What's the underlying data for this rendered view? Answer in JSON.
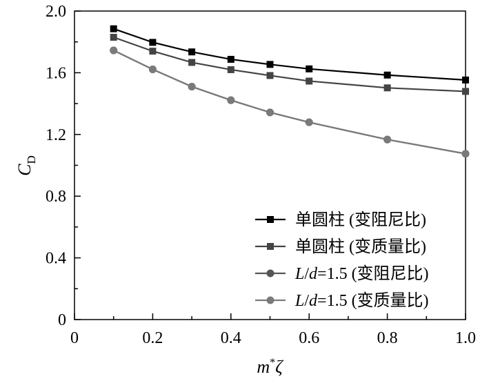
{
  "chart_data": {
    "type": "line",
    "xlabel": "m*ζ",
    "ylabel": "CD",
    "xlim": [
      0,
      1.0
    ],
    "ylim": [
      0,
      2.0
    ],
    "x_ticks": [
      "0",
      "0.2",
      "0.4",
      "0.6",
      "0.8",
      "1.0"
    ],
    "y_ticks": [
      "0",
      "0.4",
      "0.8",
      "1.2",
      "1.6",
      "2.0"
    ],
    "grid": false,
    "legend_position": "bottom-right",
    "x": [
      0.1,
      0.2,
      0.3,
      0.4,
      0.5,
      0.6,
      0.8,
      1.0
    ],
    "series": [
      {
        "name": "单圆柱 (变阻尼比)",
        "marker": "square",
        "color": "#000000",
        "values": [
          1.885,
          1.797,
          1.735,
          1.687,
          1.654,
          1.625,
          1.585,
          1.553
        ]
      },
      {
        "name": "单圆柱 (变质量比)",
        "marker": "square",
        "color": "#444444",
        "values": [
          1.83,
          1.74,
          1.667,
          1.62,
          1.582,
          1.546,
          1.502,
          1.479
        ]
      },
      {
        "name": "L/d=1.5 (变阻尼比)",
        "marker": "circle",
        "color": "#555555",
        "values": [
          1.745,
          1.622,
          1.51,
          1.422,
          1.343,
          1.279,
          1.167,
          1.075
        ]
      },
      {
        "name": "L/d=1.5 (变质量比)",
        "marker": "circle",
        "color": "#7a7a7a",
        "values": [
          1.745,
          1.622,
          1.51,
          1.422,
          1.343,
          1.279,
          1.167,
          1.075
        ]
      }
    ]
  }
}
